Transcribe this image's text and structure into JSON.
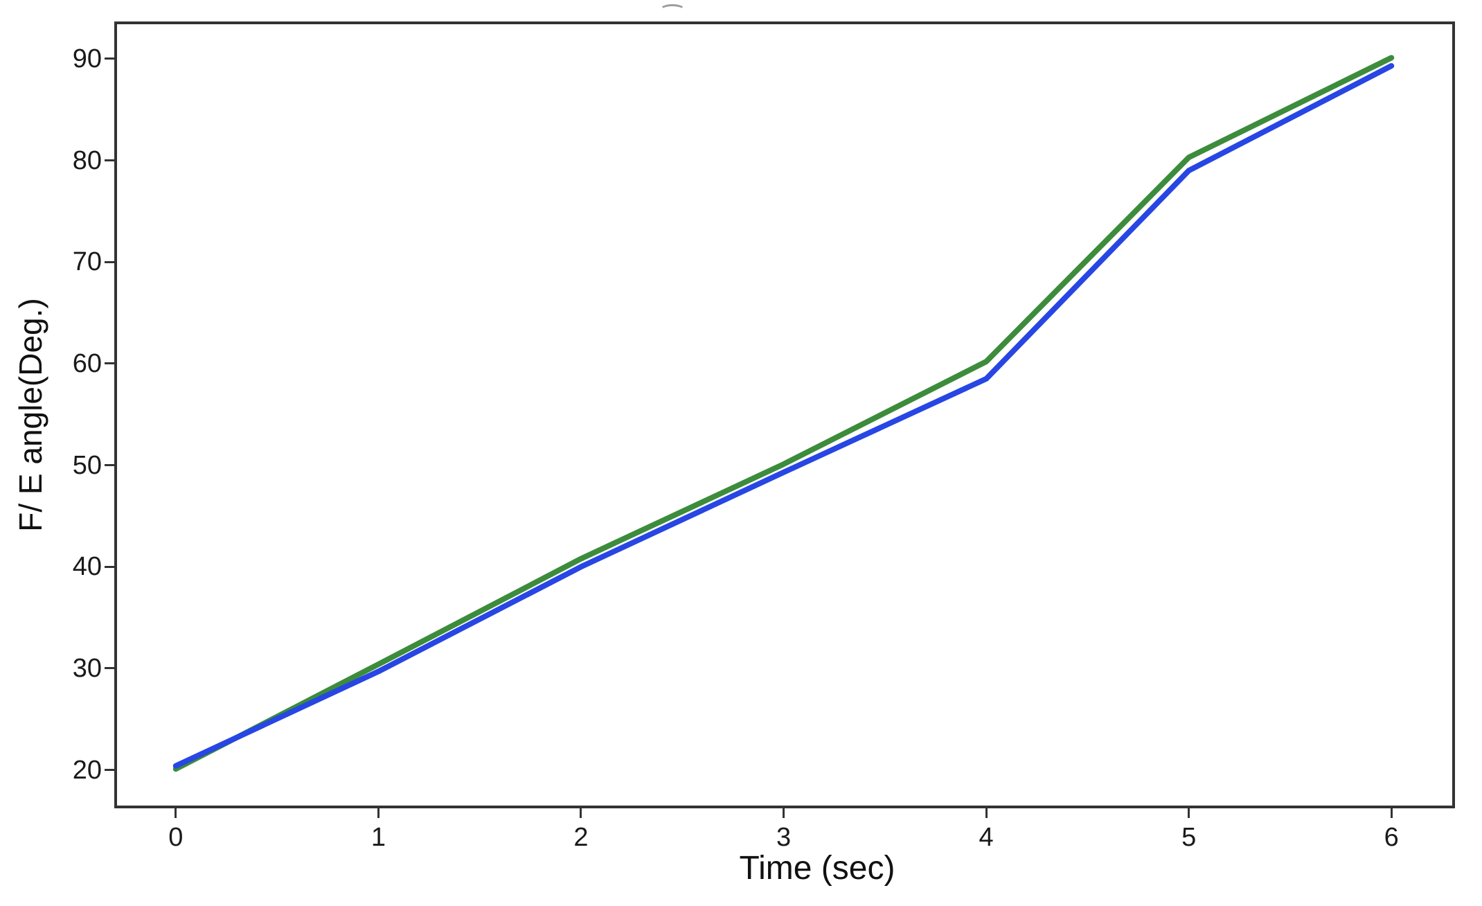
{
  "figure": {
    "background": "#ffffff",
    "spine_color": "#333333"
  },
  "chart_data": {
    "type": "line",
    "x": [
      0,
      1,
      2,
      3,
      4,
      5,
      6
    ],
    "series": [
      {
        "name": "green-line",
        "color": "#3c8c3c",
        "values": [
          20.1,
          30.4,
          40.8,
          50.1,
          60.2,
          80.3,
          90.1
        ]
      },
      {
        "name": "blue-line",
        "color": "#2746e3",
        "values": [
          20.4,
          29.7,
          40.0,
          49.3,
          58.5,
          79.0,
          89.3
        ]
      }
    ],
    "title": "",
    "xlabel": "Time (sec)",
    "ylabel": "F/ E angle(Deg.)",
    "xticks": [
      "0",
      "1",
      "2",
      "3",
      "4",
      "5",
      "6"
    ],
    "yticks": [
      "20",
      "30",
      "40",
      "50",
      "60",
      "70",
      "80",
      "90"
    ],
    "xlim": [
      -0.29,
      6.3
    ],
    "ylim": [
      16.5,
      93.4
    ],
    "grid": false,
    "legend": null,
    "line_width": 8
  }
}
